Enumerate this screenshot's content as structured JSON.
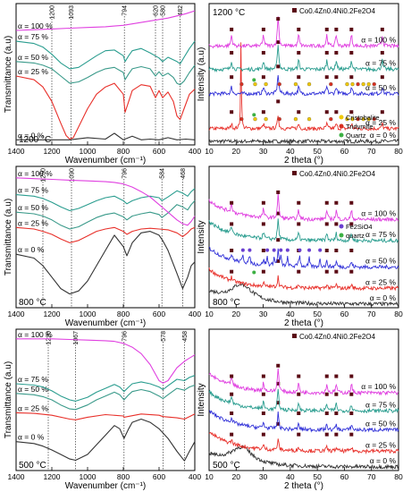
{
  "colors": {
    "alpha_0": "#333333",
    "alpha_25": "#e8302a",
    "alpha_50": "#3030d8",
    "alpha_75": "#2a9d8f",
    "alpha_100": "#e040e0",
    "ftir_alpha_50": "#3a9a8a",
    "marker_spinel": "#5a0a14",
    "marker_cristobalite": "#f0c800",
    "marker_tridymite": "#d83020",
    "marker_quartz": "#3cb043",
    "marker_fe2sio4": "#6a3fd0"
  },
  "chart_data": [
    {
      "id": "ftir-1200",
      "type": "line",
      "temperature_label": "1200 °C",
      "xlabel": "Wavenumber (cm⁻¹)",
      "ylabel": "Transmittance (a.u)",
      "xlim": [
        1400,
        400
      ],
      "x_ticks": [
        "1400",
        "1200",
        "1000",
        "800",
        "600",
        "400"
      ],
      "ref_lines": [
        "1200",
        "1093",
        "794",
        "620",
        "580",
        "482"
      ],
      "series": [
        {
          "label": "α = 0 %",
          "key": "alpha_0",
          "x": [
            1400,
            1300,
            1200,
            1100,
            1000,
            900,
            850,
            800,
            750,
            700,
            650,
            600,
            550,
            500,
            450,
            400
          ],
          "y": [
            0.2,
            0.2,
            0.2,
            0.2,
            0.5,
            0.3,
            1.1,
            0.2,
            0.7,
            0.2,
            0.3,
            0.2,
            0.5,
            0.2,
            0.3,
            0.2
          ]
        },
        {
          "label": "α = 25 %",
          "key": "alpha_25",
          "x": [
            1400,
            1300,
            1250,
            1200,
            1150,
            1120,
            1100,
            1080,
            1050,
            1000,
            950,
            900,
            850,
            800,
            790,
            770,
            750,
            700,
            650,
            620,
            600,
            580,
            550,
            520,
            500,
            482,
            460,
            430,
            400
          ],
          "y": [
            9.0,
            8.5,
            7.5,
            5.5,
            2.5,
            0.8,
            0.3,
            0.5,
            2.0,
            4.5,
            6.5,
            7.5,
            8.0,
            6.5,
            4.0,
            5.5,
            7.0,
            7.8,
            7.6,
            6.0,
            7.0,
            6.0,
            6.8,
            5.5,
            3.5,
            3.0,
            4.5,
            6.5,
            7.2
          ]
        },
        {
          "label": "α = 50 %",
          "key": "ftir_alpha_50",
          "x": [
            1400,
            1300,
            1250,
            1200,
            1150,
            1100,
            1050,
            1000,
            950,
            900,
            850,
            800,
            790,
            770,
            750,
            700,
            650,
            620,
            600,
            580,
            550,
            520,
            500,
            482,
            460,
            430,
            400
          ],
          "y": [
            11.0,
            10.8,
            10.5,
            10.0,
            9.0,
            8.0,
            8.2,
            8.8,
            9.5,
            10.0,
            10.2,
            9.5,
            8.5,
            9.3,
            10.0,
            10.3,
            10.0,
            9.0,
            9.6,
            9.0,
            9.4,
            8.8,
            8.0,
            7.8,
            8.3,
            9.5,
            10.5
          ]
        },
        {
          "label": "α = 75 %",
          "key": "alpha_75",
          "x": [
            1400,
            1300,
            1250,
            1200,
            1150,
            1100,
            1050,
            1000,
            950,
            900,
            850,
            800,
            790,
            770,
            750,
            700,
            650,
            600,
            580,
            550,
            500,
            482,
            460,
            430,
            400
          ],
          "y": [
            13.8,
            13.5,
            13.0,
            12.0,
            10.8,
            10.0,
            10.2,
            11.0,
            11.8,
            12.5,
            12.6,
            11.8,
            11.0,
            11.8,
            12.5,
            12.8,
            12.2,
            11.5,
            11.0,
            11.6,
            11.0,
            10.7,
            11.6,
            12.8,
            13.8
          ]
        },
        {
          "label": "α = 100 %",
          "key": "alpha_100",
          "x": [
            1400,
            1300,
            1200,
            1100,
            1000,
            900,
            850,
            800,
            750,
            700,
            650,
            600,
            550,
            500,
            450,
            400
          ],
          "y": [
            15.3,
            15.4,
            15.5,
            15.6,
            15.7,
            15.8,
            15.9,
            16.0,
            16.2,
            16.4,
            16.6,
            16.8,
            17.0,
            17.3,
            17.6,
            18.0
          ]
        }
      ],
      "series_labels_left": [
        "α = 100 %",
        "α = 75 %",
        "α = 50 %",
        "α = 25 %",
        "α = 0 %"
      ]
    },
    {
      "id": "xrd-1200",
      "type": "line",
      "temperature_label": "1200 °C",
      "formula_legend": "Co0.4Zn0.4Ni0.2Fe2O4",
      "xlabel": "2 theta (°)",
      "ylabel": "Intensity (a.u)",
      "xlim": [
        10,
        80
      ],
      "x_ticks": [
        "10",
        "20",
        "30",
        "40",
        "50",
        "60",
        "70",
        "80"
      ],
      "phase_legend": [
        {
          "label": "Cristobalite",
          "key": "marker_cristobalite"
        },
        {
          "label": "Tridymite",
          "key": "marker_tridymite"
        },
        {
          "label": "Quartz",
          "key": "marker_quartz"
        }
      ],
      "series": [
        {
          "label": "α = 0 %",
          "key": "alpha_0",
          "baseline": 0.0
        },
        {
          "label": "α = 25 %",
          "key": "alpha_25",
          "baseline": 1.2
        },
        {
          "label": "α = 50 %",
          "key": "alpha_50",
          "baseline": 4.5
        },
        {
          "label": "α = 75 %",
          "key": "alpha_75",
          "baseline": 6.8
        },
        {
          "label": "α = 100 %",
          "key": "alpha_100",
          "baseline": 9.0
        }
      ],
      "peaks_2theta": [
        18.3,
        30.1,
        35.5,
        43.1,
        53.5,
        57.0,
        62.6,
        74.0
      ],
      "sharp_peaks_25": [
        21.8
      ]
    },
    {
      "id": "ftir-800",
      "type": "line",
      "temperature_label": "800 °C",
      "xlabel": "Wavenumber (cm⁻¹)",
      "ylabel": "Transmittance (a.u)",
      "xlim": [
        1400,
        400
      ],
      "x_ticks": [
        "1400",
        "1200",
        "1000",
        "800",
        "600",
        "400"
      ],
      "ref_lines": [
        "1250",
        "1090",
        "796",
        "584",
        "468"
      ],
      "series": [
        {
          "label": "α = 0 %",
          "key": "alpha_0",
          "x": [
            1400,
            1300,
            1250,
            1200,
            1150,
            1100,
            1050,
            1000,
            950,
            900,
            850,
            800,
            780,
            750,
            700,
            650,
            600,
            580,
            550,
            500,
            468,
            440,
            420,
            400
          ],
          "y": [
            6.0,
            5.5,
            4.5,
            3.0,
            1.5,
            0.8,
            1.2,
            2.5,
            4.5,
            6.5,
            8.5,
            7.0,
            5.8,
            7.5,
            8.8,
            9.0,
            8.5,
            7.8,
            6.5,
            3.5,
            1.5,
            3.0,
            4.5,
            5.0
          ]
        },
        {
          "label": "α = 25 %",
          "key": "alpha_25",
          "x": [
            1400,
            1300,
            1250,
            1200,
            1150,
            1100,
            1050,
            1000,
            950,
            900,
            850,
            800,
            780,
            750,
            700,
            650,
            600,
            550,
            500,
            468,
            440,
            420,
            400
          ],
          "y": [
            9.5,
            9.3,
            9.0,
            8.6,
            8.0,
            7.5,
            7.8,
            8.4,
            9.0,
            9.3,
            9.5,
            9.0,
            8.6,
            9.0,
            9.3,
            9.4,
            9.3,
            9.2,
            8.8,
            8.3,
            8.8,
            9.3,
            9.5
          ]
        },
        {
          "label": "α = 50 %",
          "key": "ftir_alpha_50",
          "x": [
            1400,
            1300,
            1250,
            1200,
            1150,
            1100,
            1050,
            1000,
            950,
            900,
            850,
            800,
            780,
            750,
            700,
            650,
            600,
            584,
            550,
            500,
            468,
            440,
            420,
            400
          ],
          "y": [
            11.5,
            11.3,
            11.0,
            10.5,
            9.8,
            9.3,
            9.6,
            10.2,
            10.8,
            11.2,
            11.4,
            10.9,
            10.5,
            11.0,
            11.3,
            11.5,
            11.2,
            10.8,
            11.4,
            12.5,
            12.2,
            11.8,
            12.5,
            13.0
          ]
        },
        {
          "label": "α = 75 %",
          "key": "alpha_75",
          "x": [
            1400,
            1300,
            1250,
            1200,
            1150,
            1100,
            1050,
            1000,
            950,
            900,
            850,
            800,
            780,
            750,
            700,
            650,
            600,
            584,
            550,
            500,
            468,
            440,
            420,
            400
          ],
          "y": [
            13.8,
            13.6,
            13.3,
            12.8,
            12.2,
            11.7,
            12.0,
            12.5,
            13.0,
            13.4,
            13.6,
            13.0,
            12.6,
            13.0,
            13.4,
            13.6,
            13.4,
            13.0,
            13.5,
            14.3,
            14.0,
            13.6,
            14.2,
            14.6
          ]
        },
        {
          "label": "α = 100 %",
          "key": "alpha_100",
          "x": [
            1400,
            1300,
            1200,
            1100,
            1000,
            900,
            850,
            800,
            750,
            700,
            650,
            600,
            550,
            500,
            468,
            440,
            420,
            400
          ],
          "y": [
            16.0,
            15.9,
            15.8,
            15.7,
            15.6,
            15.5,
            15.4,
            15.2,
            14.8,
            14.2,
            13.5,
            12.5,
            11.5,
            10.5,
            10.0,
            9.8,
            10.3,
            11.0
          ]
        }
      ],
      "series_labels_left": [
        "α = 100 %",
        "α = 75 %",
        "α = 50 %",
        "α = 25 %",
        "α = 0 %"
      ]
    },
    {
      "id": "xrd-800",
      "type": "line",
      "temperature_label": "800 °C",
      "formula_legend": "Co0.4Zn0.4Ni0.2Fe2O4",
      "xlabel": "2 theta (°)",
      "ylabel": "Intensity",
      "xlim": [
        10,
        80
      ],
      "x_ticks": [
        "10",
        "20",
        "30",
        "40",
        "50",
        "60",
        "70",
        "80"
      ],
      "phase_legend": [
        {
          "label": "Fe2SiO4",
          "key": "marker_fe2sio4"
        },
        {
          "label": "quartz",
          "key": "marker_quartz"
        }
      ],
      "series": [
        {
          "label": "α = 0 %",
          "key": "alpha_0",
          "baseline": 0.0
        },
        {
          "label": "α = 25 %",
          "key": "alpha_25",
          "baseline": 1.5
        },
        {
          "label": "α = 50 %",
          "key": "alpha_50",
          "baseline": 3.5
        },
        {
          "label": "α = 75 %",
          "key": "alpha_75",
          "baseline": 6.0
        },
        {
          "label": "α = 100 %",
          "key": "alpha_100",
          "baseline": 8.0
        }
      ],
      "peaks_2theta": [
        18.3,
        30.1,
        35.5,
        43.1,
        53.5,
        57.0,
        62.6
      ],
      "fayalite_peaks": [
        22.5,
        25.0,
        31.5,
        34.0,
        36.5,
        39.0,
        43.5,
        47.0,
        51.0
      ]
    },
    {
      "id": "ftir-500",
      "type": "line",
      "temperature_label": "500 °C",
      "xlabel": "Wavenumber (cm⁻¹)",
      "ylabel": "Transmittance (a.u)",
      "xlim": [
        1400,
        400
      ],
      "x_ticks": [
        "1400",
        "1200",
        "1000",
        "800",
        "600",
        "400"
      ],
      "ref_lines": [
        "1220",
        "1067",
        "796",
        "578",
        "458"
      ],
      "series": [
        {
          "label": "α = 0 %",
          "key": "alpha_0",
          "x": [
            1400,
            1300,
            1250,
            1200,
            1150,
            1100,
            1067,
            1000,
            950,
            900,
            850,
            820,
            796,
            770,
            750,
            700,
            650,
            600,
            550,
            500,
            458,
            430,
            400
          ],
          "y": [
            3.5,
            3.2,
            2.8,
            2.2,
            1.5,
            0.8,
            0.6,
            1.5,
            3.0,
            4.5,
            6.0,
            5.5,
            4.0,
            5.5,
            6.5,
            7.0,
            6.5,
            5.5,
            4.0,
            2.0,
            0.5,
            2.0,
            3.5
          ]
        },
        {
          "label": "α = 25 %",
          "key": "alpha_25",
          "x": [
            1400,
            1300,
            1200,
            1100,
            1067,
            1000,
            900,
            800,
            796,
            700,
            600,
            578,
            500,
            458,
            430,
            400
          ],
          "y": [
            8.0,
            7.9,
            7.6,
            7.0,
            6.9,
            7.3,
            7.7,
            7.5,
            7.3,
            7.8,
            7.6,
            7.4,
            7.2,
            7.0,
            7.4,
            7.8
          ]
        },
        {
          "label": "α = 50 %",
          "key": "ftir_alpha_50",
          "x": [
            1400,
            1300,
            1250,
            1200,
            1150,
            1100,
            1067,
            1000,
            950,
            900,
            850,
            820,
            796,
            770,
            750,
            700,
            650,
            600,
            578,
            550,
            500,
            458,
            430,
            400
          ],
          "y": [
            11.0,
            10.8,
            10.5,
            10.0,
            9.2,
            8.6,
            8.5,
            9.2,
            10.0,
            10.6,
            11.2,
            10.8,
            10.0,
            10.8,
            11.3,
            11.6,
            11.3,
            10.6,
            10.2,
            10.8,
            11.8,
            11.5,
            12.0,
            12.3
          ]
        },
        {
          "label": "α = 75 %",
          "key": "alpha_75",
          "x": [
            1400,
            1300,
            1250,
            1200,
            1150,
            1100,
            1067,
            1000,
            950,
            900,
            850,
            820,
            796,
            770,
            750,
            700,
            650,
            600,
            578,
            550,
            500,
            458,
            430,
            400
          ],
          "y": [
            12.5,
            12.3,
            12.0,
            11.4,
            10.6,
            10.0,
            9.8,
            10.4,
            11.2,
            11.8,
            12.4,
            12.0,
            11.3,
            12.0,
            12.5,
            12.8,
            12.5,
            12.0,
            11.6,
            12.2,
            13.2,
            13.0,
            13.5,
            13.8
          ]
        },
        {
          "label": "α = 100 %",
          "key": "alpha_100",
          "x": [
            1400,
            1300,
            1200,
            1100,
            1000,
            900,
            850,
            800,
            750,
            700,
            650,
            600,
            578,
            550,
            500,
            458,
            430,
            400
          ],
          "y": [
            19.5,
            19.5,
            19.5,
            19.4,
            19.3,
            19.2,
            19.1,
            18.8,
            18.2,
            17.2,
            15.5,
            13.0,
            12.6,
            13.0,
            15.0,
            16.0,
            16.5,
            17.0
          ]
        }
      ],
      "series_labels_left": [
        "α = 100 %",
        "α = 75 %",
        "α = 50 %",
        "α = 25 %",
        "α = 0 %"
      ]
    },
    {
      "id": "xrd-500",
      "type": "line",
      "temperature_label": "500 °C",
      "formula_legend": "Co0.4Zn0.4Ni0.2Fe2O4",
      "xlabel": "2 theta (°)",
      "ylabel": "Intensity",
      "xlim": [
        10,
        80
      ],
      "x_ticks": [
        "10",
        "20",
        "30",
        "40",
        "50",
        "60",
        "70",
        "80"
      ],
      "series": [
        {
          "label": "α = 0 %",
          "key": "alpha_0",
          "baseline": 0.0
        },
        {
          "label": "α = 25 %",
          "key": "alpha_25",
          "baseline": 1.5
        },
        {
          "label": "α = 50 %",
          "key": "alpha_50",
          "baseline": 3.5
        },
        {
          "label": "α = 75 %",
          "key": "alpha_75",
          "baseline": 5.3
        },
        {
          "label": "α = 100 %",
          "key": "alpha_100",
          "baseline": 7.0
        }
      ],
      "peaks_2theta": [
        18.3,
        30.1,
        35.5,
        43.1,
        53.5,
        57.0,
        62.6
      ]
    }
  ]
}
